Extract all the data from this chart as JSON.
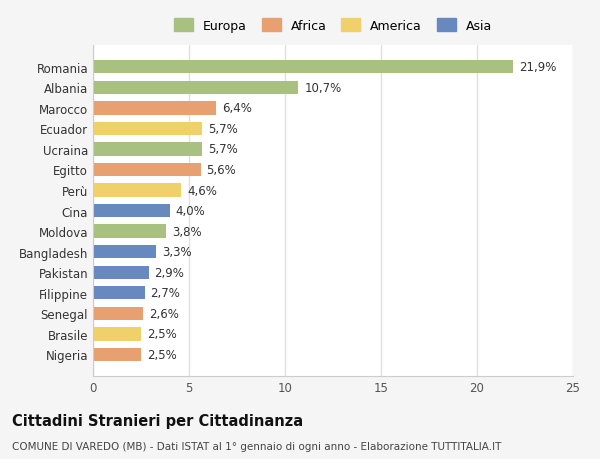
{
  "countries": [
    "Romania",
    "Albania",
    "Marocco",
    "Ecuador",
    "Ucraina",
    "Egitto",
    "Perù",
    "Cina",
    "Moldova",
    "Bangladesh",
    "Pakistan",
    "Filippine",
    "Senegal",
    "Brasile",
    "Nigeria"
  ],
  "values": [
    21.9,
    10.7,
    6.4,
    5.7,
    5.7,
    5.6,
    4.6,
    4.0,
    3.8,
    3.3,
    2.9,
    2.7,
    2.6,
    2.5,
    2.5
  ],
  "categories": [
    "Europa",
    "Europa",
    "Africa",
    "America",
    "Europa",
    "Africa",
    "America",
    "Asia",
    "Europa",
    "Asia",
    "Asia",
    "Asia",
    "Africa",
    "America",
    "Africa"
  ],
  "colors": {
    "Europa": "#a8c080",
    "Africa": "#e8a070",
    "America": "#f0d068",
    "Asia": "#6888c0"
  },
  "legend_order": [
    "Europa",
    "Africa",
    "America",
    "Asia"
  ],
  "xlim": [
    0,
    25
  ],
  "xticks": [
    0,
    5,
    10,
    15,
    20,
    25
  ],
  "title": "Cittadini Stranieri per Cittadinanza",
  "subtitle": "COMUNE DI VAREDO (MB) - Dati ISTAT al 1° gennaio di ogni anno - Elaborazione TUTTITALIA.IT",
  "plot_bg": "#ffffff",
  "fig_bg": "#f5f5f5",
  "grid_color": "#e0e0e0",
  "bar_height": 0.65,
  "label_fontsize": 8.5,
  "tick_fontsize": 8.5,
  "title_fontsize": 10.5,
  "subtitle_fontsize": 7.5
}
